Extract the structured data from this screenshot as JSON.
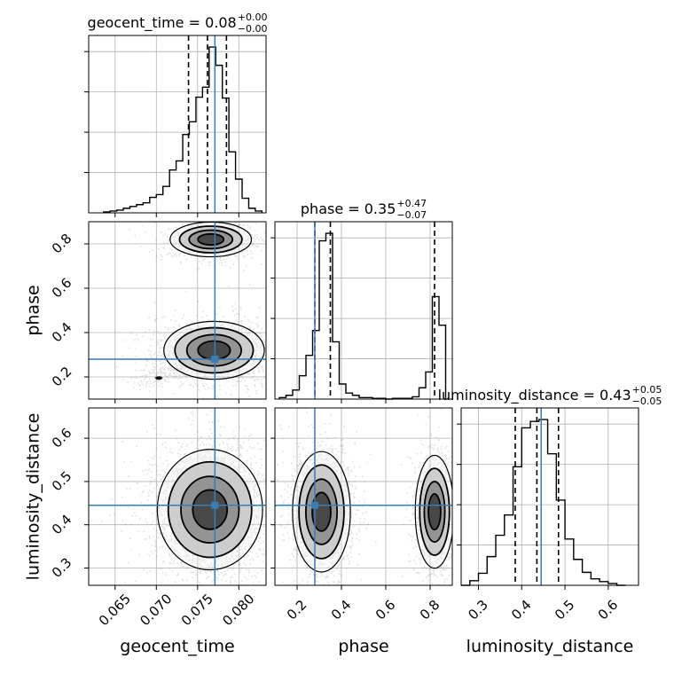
{
  "colors": {
    "truth": "#3b7cb3",
    "hist": "#000000",
    "scatter": "#555555",
    "contour": "#000000",
    "grid": "#b0b0b0"
  },
  "chart_data": {
    "type": "corner",
    "parameters": [
      "geocent_time",
      "phase",
      "luminosity_distance"
    ],
    "truths": {
      "geocent_time": 0.0771,
      "phase": 0.28,
      "luminosity_distance": 0.445
    },
    "ranges": {
      "geocent_time": [
        0.0618,
        0.0833
      ],
      "phase": [
        0.1,
        0.9
      ],
      "luminosity_distance": [
        0.26,
        0.67
      ]
    },
    "ticks": {
      "geocent_time": [
        0.065,
        0.07,
        0.075,
        0.08
      ],
      "phase": [
        0.2,
        0.4,
        0.6,
        0.8
      ],
      "luminosity_distance": [
        0.3,
        0.4,
        0.5,
        0.6
      ]
    },
    "tick_labels": {
      "geocent_time": [
        "0.065",
        "0.070",
        "0.075",
        "0.080"
      ],
      "phase": [
        "0.2",
        "0.4",
        "0.6",
        "0.8"
      ],
      "luminosity_distance": [
        "0.3",
        "0.4",
        "0.5",
        "0.6"
      ]
    },
    "titles": [
      {
        "param": "geocent_time",
        "main": "geocent_time = 0.08",
        "plus": "+0.00",
        "minus": "−0.00"
      },
      {
        "param": "phase",
        "main": "phase = 0.35",
        "plus": "+0.47",
        "minus": "−0.07"
      },
      {
        "param": "luminosity_distance",
        "main": "luminosity_distance = 0.43",
        "plus": "+0.05",
        "minus": "−0.05"
      }
    ],
    "quantiles": {
      "geocent_time": [
        0.0739,
        0.0762,
        0.0785
      ],
      "phase": [
        0.28,
        0.35,
        0.82
      ],
      "luminosity_distance": [
        0.385,
        0.435,
        0.485
      ]
    },
    "histograms": {
      "geocent_time": {
        "edges": [
          0.0636,
          0.0644,
          0.0652,
          0.066,
          0.0668,
          0.0676,
          0.0684,
          0.0692,
          0.07,
          0.0708,
          0.0716,
          0.0724,
          0.0732,
          0.074,
          0.0748,
          0.0756,
          0.0764,
          0.0772,
          0.078,
          0.0788,
          0.0796,
          0.0804,
          0.0812,
          0.082,
          0.0828
        ],
        "counts": [
          1,
          2,
          3,
          5,
          7,
          9,
          11,
          17,
          20,
          29,
          47,
          57,
          86,
          100,
          127,
          138,
          182,
          162,
          126,
          67,
          37,
          16,
          5,
          2
        ]
      },
      "phase": {
        "edges": [
          0.12,
          0.15,
          0.18,
          0.21,
          0.24,
          0.27,
          0.3,
          0.33,
          0.36,
          0.39,
          0.42,
          0.45,
          0.48,
          0.51,
          0.54,
          0.57,
          0.6,
          0.63,
          0.66,
          0.69,
          0.72,
          0.75,
          0.78,
          0.81,
          0.84,
          0.87
        ],
        "counts": [
          2,
          5,
          12,
          31,
          58,
          91,
          210,
          220,
          76,
          20,
          8,
          5,
          2,
          2,
          1,
          1,
          0,
          1,
          1,
          1,
          3,
          15,
          36,
          136,
          98
        ]
      },
      "luminosity_distance": {
        "edges": [
          0.26,
          0.28,
          0.3,
          0.32,
          0.34,
          0.36,
          0.38,
          0.4,
          0.42,
          0.44,
          0.46,
          0.48,
          0.5,
          0.52,
          0.54,
          0.56,
          0.58,
          0.6,
          0.62,
          0.64
        ],
        "counts": [
          0,
          5,
          13,
          31,
          54,
          76,
          128,
          170,
          177,
          179,
          142,
          92,
          50,
          28,
          14,
          7,
          4,
          2,
          0
        ]
      }
    },
    "densities_2d": [
      {
        "x": "geocent_time",
        "y": "phase",
        "blobs": [
          {
            "cx": 0.0766,
            "cy": 0.82,
            "sx": 0.0017,
            "sy": 0.027,
            "weight": 0.35
          },
          {
            "cx": 0.077,
            "cy": 0.32,
            "sx": 0.0021,
            "sy": 0.045,
            "weight": 0.65
          }
        ],
        "streak": {
          "x0": 0.068,
          "y0": 0.18,
          "x1": 0.0765,
          "y1": 0.3,
          "weight": 0.1
        }
      },
      {
        "x": "geocent_time",
        "y": "luminosity_distance",
        "blobs": [
          {
            "cx": 0.0765,
            "cy": 0.435,
            "sx": 0.0022,
            "sy": 0.048,
            "weight": 1.0
          }
        ]
      },
      {
        "x": "phase",
        "y": "luminosity_distance",
        "blobs": [
          {
            "cx": 0.31,
            "cy": 0.43,
            "sx": 0.045,
            "sy": 0.048,
            "weight": 0.62
          },
          {
            "cx": 0.82,
            "cy": 0.43,
            "sx": 0.03,
            "sy": 0.045,
            "weight": 0.38
          }
        ]
      }
    ],
    "contour_levels": [
      0.118,
      0.393,
      0.675,
      0.865
    ]
  }
}
